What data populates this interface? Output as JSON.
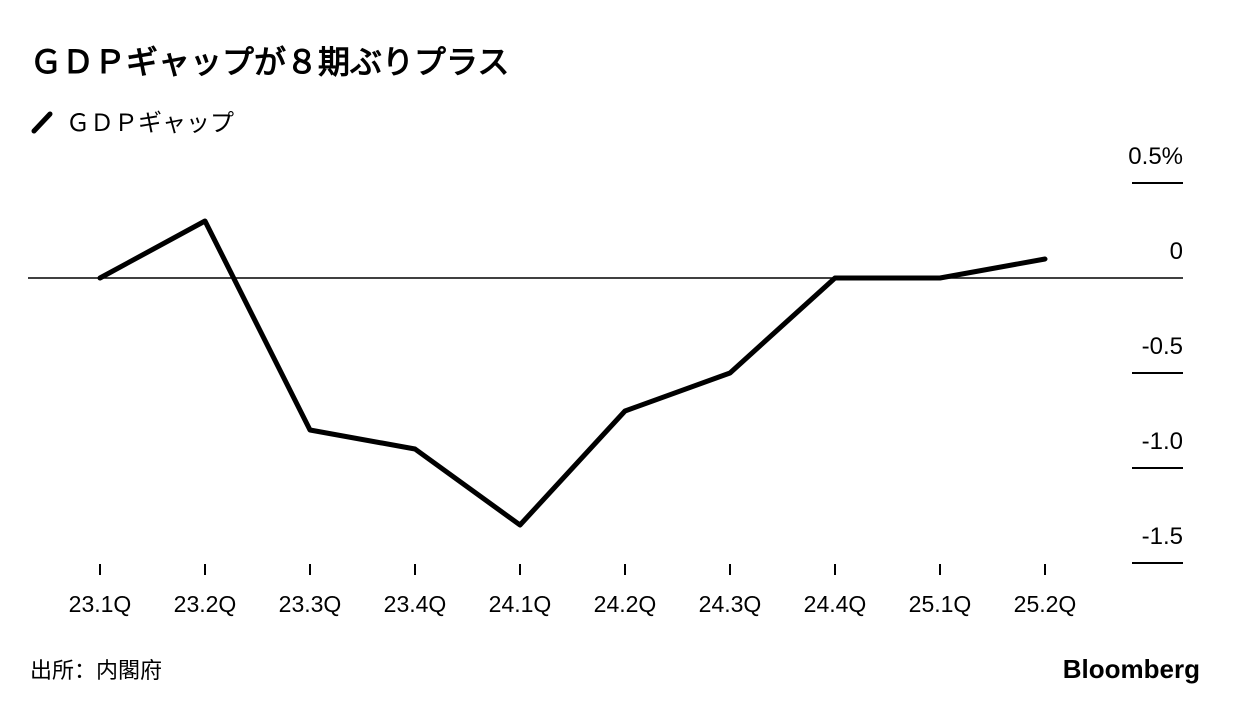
{
  "chart_data": {
    "type": "line",
    "title": "ＧＤＰギャップが８期ぶりプラス",
    "categories": [
      "23.1Q",
      "23.2Q",
      "23.3Q",
      "23.4Q",
      "24.1Q",
      "24.2Q",
      "24.3Q",
      "24.4Q",
      "25.1Q",
      "25.2Q"
    ],
    "series": [
      {
        "name": "ＧＤＰギャップ",
        "color": "#000000",
        "values": [
          0,
          0.3,
          -0.8,
          -0.9,
          -1.3,
          -0.7,
          -0.5,
          0,
          0,
          0.1
        ]
      }
    ],
    "ylim": [
      -1.5,
      0.5
    ],
    "yticks": [
      {
        "value": 0.5,
        "label": "0.5%"
      },
      0,
      -0.5,
      {
        "value": -1.0,
        "label": "-1.0"
      },
      -1.5
    ],
    "source": "出所：内閣府",
    "brand": "Bloomberg"
  }
}
